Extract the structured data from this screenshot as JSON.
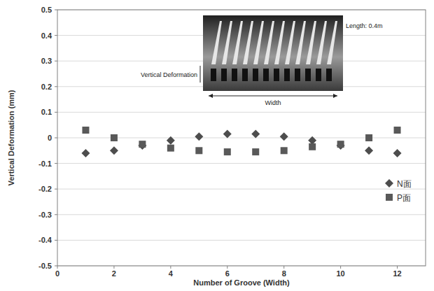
{
  "chart_data": {
    "type": "scatter",
    "x_label": "Number of Groove (Width)",
    "y_label": "Vertical Deformation (mm)",
    "annotations": [
      "Vertical Deformation",
      "Length: 0.4m",
      "Width"
    ],
    "x": [
      1,
      2,
      3,
      4,
      5,
      6,
      7,
      8,
      9,
      10,
      11,
      12
    ],
    "series": [
      {
        "name": "N面",
        "color": "#4d4d4d",
        "marker": "diamond",
        "values": [
          -0.06,
          -0.05,
          -0.03,
          -0.01,
          0.005,
          0.015,
          0.015,
          0.005,
          -0.01,
          -0.03,
          -0.05,
          -0.06
        ]
      },
      {
        "name": "P面",
        "color": "#595959",
        "marker": "square",
        "values": [
          0.03,
          0,
          -0.025,
          -0.04,
          -0.05,
          -0.055,
          -0.055,
          -0.05,
          -0.035,
          -0.025,
          0,
          0.03
        ]
      }
    ],
    "xlim": [
      0,
      13
    ],
    "xticks": [
      0,
      2,
      4,
      6,
      8,
      10,
      12
    ],
    "ylim": [
      -0.5,
      0.5
    ],
    "yticks": [
      0.5,
      0.4,
      0.3,
      0.2,
      0.1,
      0,
      -0.1,
      -0.2,
      -0.3,
      -0.4,
      -0.5
    ],
    "grid": true,
    "legend": "right"
  }
}
